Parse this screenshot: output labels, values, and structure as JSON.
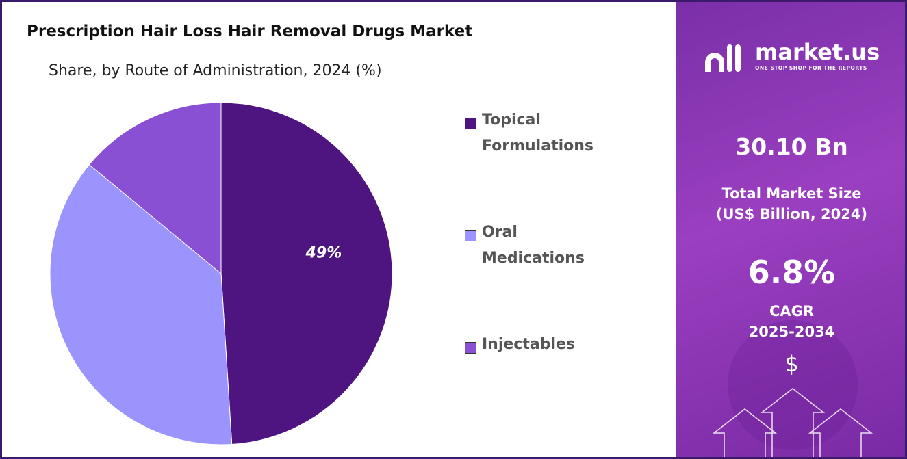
{
  "chart_data": {
    "type": "pie",
    "title": "Prescription Hair Loss Hair Removal Drugs Market",
    "subtitle": "Share, by Route of Administration, 2024 (%)",
    "categories": [
      "Topical Formulations",
      "Oral Medications",
      "Injectables"
    ],
    "values": [
      49,
      37,
      14
    ],
    "value_labels": [
      "49%",
      null,
      null
    ],
    "colors": [
      "#4e1580",
      "#9b94fd",
      "#8a50d3"
    ]
  },
  "panel": {
    "brand": "market.us",
    "tagline": "ONE STOP SHOP FOR THE REPORTS",
    "market_size": "30.10 Bn",
    "market_size_label": "Total Market Size",
    "market_size_unit": "(US$ Billion, 2024)",
    "cagr": "6.8%",
    "cagr_label": "CAGR",
    "cagr_period": "2025-2034",
    "icon": "$"
  }
}
